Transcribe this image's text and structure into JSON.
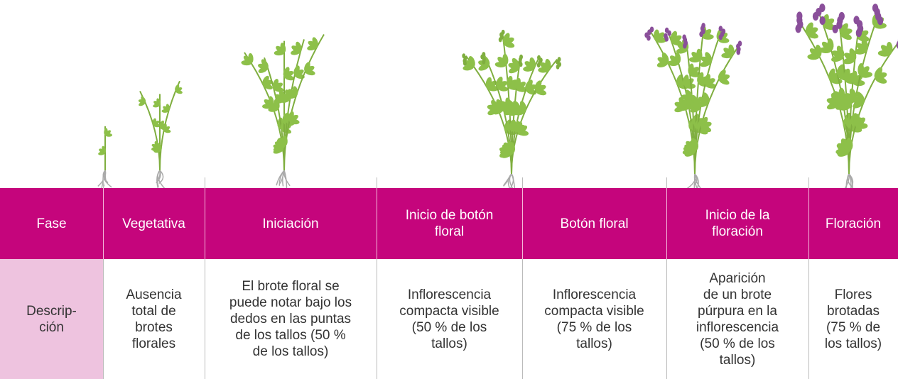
{
  "header": {
    "cells": [
      "Fase",
      "Vegetativa",
      "Iniciación",
      "Inicio de botón\nfloral",
      "Botón floral",
      "Inicio de la\nfloración",
      "Floración"
    ]
  },
  "description": {
    "cells": [
      "Descrip-\nción",
      "Ausencia\ntotal de\nbrotes\nflorales",
      "El brote floral se\npuede notar bajo los\ndedos en las puntas\nde los tallos (50 %\nde los tallos)",
      "Inflorescencia\ncompacta visible\n(50 % de los\ntallos)",
      "Inflorescencia\ncompacta visible\n(75 % de los\ntallos)",
      "Aparición\nde un brote\npúrpura en la\ninflorescencia\n(50 % de los\ntallos)",
      "Flores\nbrotadas\n(75 % de\nlos tallos)"
    ]
  }
}
